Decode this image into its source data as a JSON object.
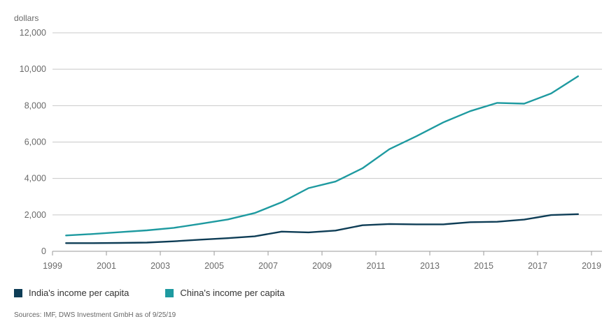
{
  "chart_data": {
    "type": "line",
    "ylabel": "dollars",
    "ylim": [
      0,
      12000
    ],
    "yticks": [
      0,
      2000,
      4000,
      6000,
      8000,
      10000,
      12000
    ],
    "ytick_labels": [
      "0",
      "2,000",
      "4,000",
      "6,000",
      "8,000",
      "10,000",
      "12,000"
    ],
    "xlim": [
      1999,
      2019
    ],
    "xticks": [
      1999,
      2001,
      2003,
      2005,
      2007,
      2009,
      2011,
      2013,
      2015,
      2017,
      2019
    ],
    "x": [
      1999.5,
      2000.5,
      2001.5,
      2002.5,
      2003.5,
      2004.5,
      2005.5,
      2006.5,
      2007.5,
      2008.5,
      2009.5,
      2010.5,
      2011.5,
      2012.5,
      2013.5,
      2014.5,
      2015.5,
      2016.5,
      2017.5,
      2018.5
    ],
    "series": [
      {
        "name": "India's income per capita",
        "color": "#0e3d56",
        "values": [
          450,
          450,
          460,
          480,
          550,
          640,
          720,
          820,
          1080,
          1040,
          1140,
          1430,
          1500,
          1480,
          1480,
          1600,
          1620,
          1740,
          1990,
          2040
        ]
      },
      {
        "name": "China's income per capita",
        "color": "#1e9aa0",
        "values": [
          870,
          950,
          1050,
          1150,
          1290,
          1510,
          1750,
          2100,
          2690,
          3470,
          3830,
          4560,
          5610,
          6320,
          7080,
          7700,
          8150,
          8110,
          8670,
          9610
        ]
      }
    ],
    "grid": true,
    "legend_placement": "bottom-left"
  },
  "legend": {
    "india": "India's income per capita",
    "china": "China's income per capita"
  },
  "source_note": "Sources: IMF, DWS Investment GmbH as of 9/25/19"
}
